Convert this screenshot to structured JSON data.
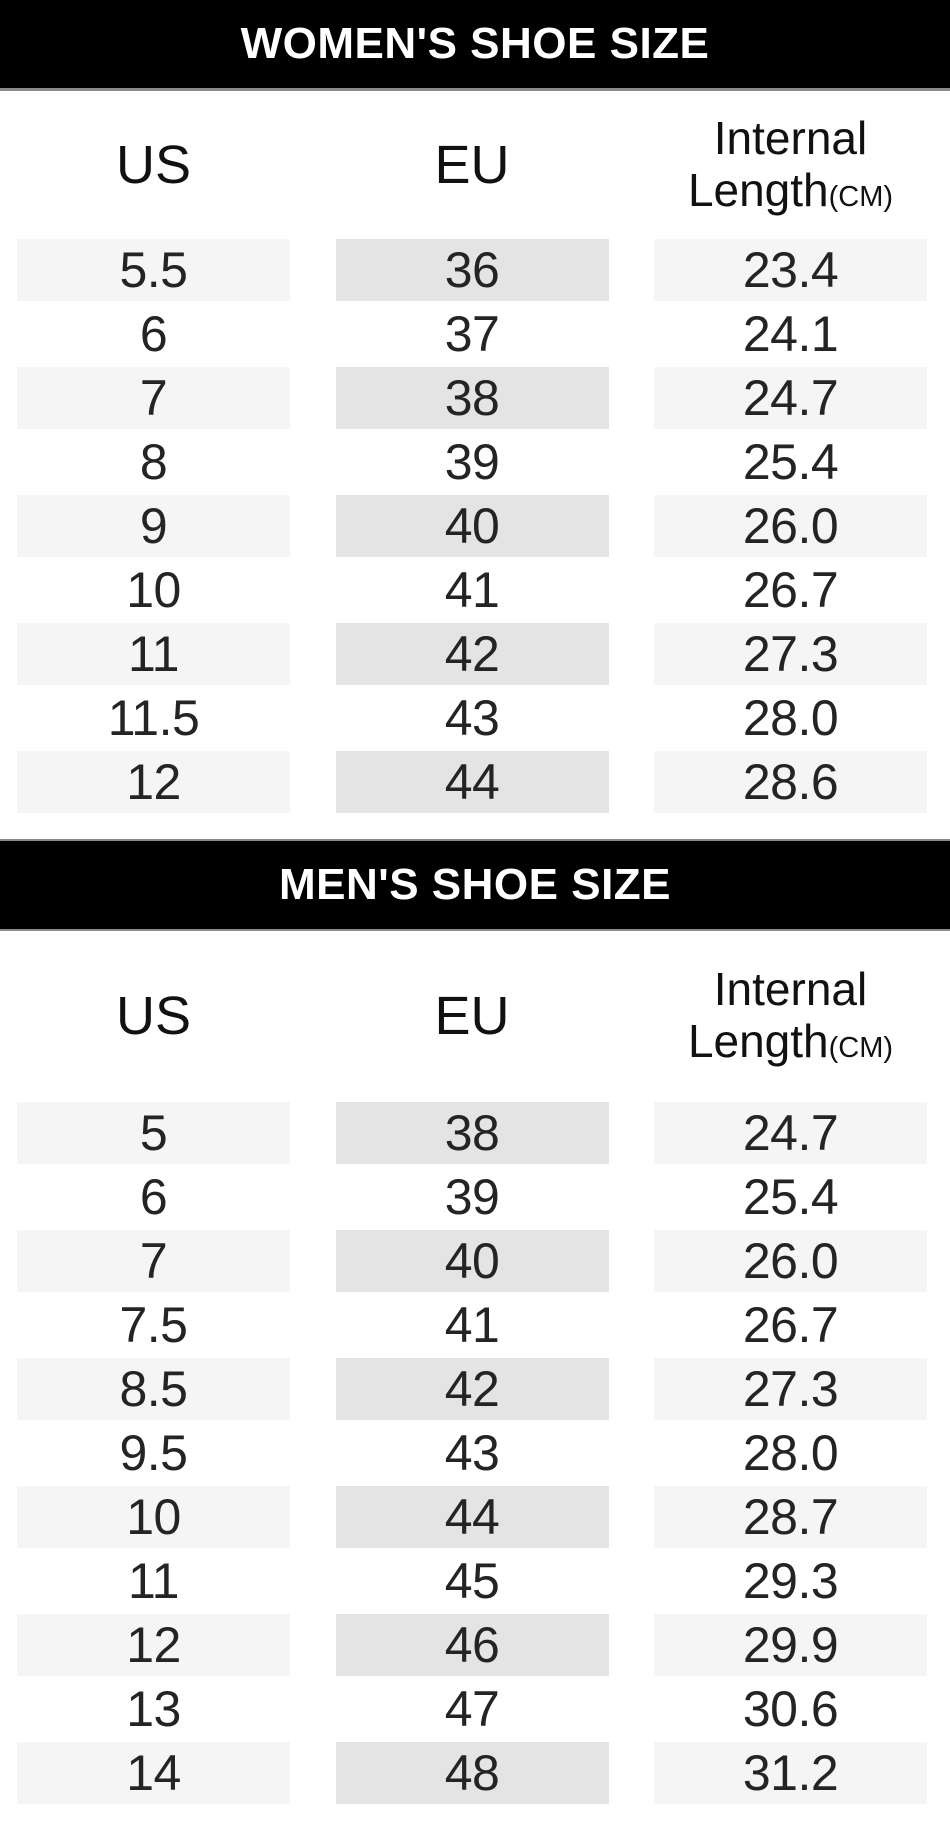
{
  "colors": {
    "banner_bg": "#000000",
    "banner_text": "#ffffff",
    "banner_border": "#8a8a8a",
    "cell_light": "#f5f5f6",
    "cell_dark": "#e4e4e5",
    "text": "#242424"
  },
  "tables": [
    {
      "id": "women",
      "banner": "WOMEN'S SHOE SIZE",
      "columns": {
        "us": "US",
        "eu": "EU",
        "internal_line1": "Internal",
        "internal_line2": "Length",
        "unit": "(CM)"
      },
      "rows": [
        [
          "5.5",
          "36",
          "23.4"
        ],
        [
          "6",
          "37",
          "24.1"
        ],
        [
          "7",
          "38",
          "24.7"
        ],
        [
          "8",
          "39",
          "25.4"
        ],
        [
          "9",
          "40",
          "26.0"
        ],
        [
          "10",
          "41",
          "26.7"
        ],
        [
          "11",
          "42",
          "27.3"
        ],
        [
          "11.5",
          "43",
          "28.0"
        ],
        [
          "12",
          "44",
          "28.6"
        ]
      ]
    },
    {
      "id": "men",
      "banner": "MEN'S SHOE SIZE",
      "columns": {
        "us": "US",
        "eu": "EU",
        "internal_line1": "Internal",
        "internal_line2": "Length",
        "unit": "(CM)"
      },
      "rows": [
        [
          "5",
          "38",
          "24.7"
        ],
        [
          "6",
          "39",
          "25.4"
        ],
        [
          "7",
          "40",
          "26.0"
        ],
        [
          "7.5",
          "41",
          "26.7"
        ],
        [
          "8.5",
          "42",
          "27.3"
        ],
        [
          "9.5",
          "43",
          "28.0"
        ],
        [
          "10",
          "44",
          "28.7"
        ],
        [
          "11",
          "45",
          "29.3"
        ],
        [
          "12",
          "46",
          "29.9"
        ],
        [
          "13",
          "47",
          "30.6"
        ],
        [
          "14",
          "48",
          "31.2"
        ]
      ]
    }
  ],
  "chart_data": [
    {
      "type": "table",
      "title": "WOMEN'S SHOE SIZE",
      "columns": [
        "US",
        "EU",
        "Internal Length(CM)"
      ],
      "rows": [
        [
          "5.5",
          "36",
          "23.4"
        ],
        [
          "6",
          "37",
          "24.1"
        ],
        [
          "7",
          "38",
          "24.7"
        ],
        [
          "8",
          "39",
          "25.4"
        ],
        [
          "9",
          "40",
          "26.0"
        ],
        [
          "10",
          "41",
          "26.7"
        ],
        [
          "11",
          "42",
          "27.3"
        ],
        [
          "11.5",
          "43",
          "28.0"
        ],
        [
          "12",
          "44",
          "28.6"
        ]
      ],
      "layout_hints": {
        "striped_rows": "odd rows shaded",
        "eu_column_shade": "darker gray than US and Internal Length columns"
      }
    },
    {
      "type": "table",
      "title": "MEN'S SHOE SIZE",
      "columns": [
        "US",
        "EU",
        "Internal Length(CM)"
      ],
      "rows": [
        [
          "5",
          "38",
          "24.7"
        ],
        [
          "6",
          "39",
          "25.4"
        ],
        [
          "7",
          "40",
          "26.0"
        ],
        [
          "7.5",
          "41",
          "26.7"
        ],
        [
          "8.5",
          "42",
          "27.3"
        ],
        [
          "9.5",
          "43",
          "28.0"
        ],
        [
          "10",
          "44",
          "28.7"
        ],
        [
          "11",
          "45",
          "29.3"
        ],
        [
          "12",
          "46",
          "29.9"
        ],
        [
          "13",
          "47",
          "30.6"
        ],
        [
          "14",
          "48",
          "31.2"
        ]
      ],
      "layout_hints": {
        "striped_rows": "odd rows shaded",
        "eu_column_shade": "darker gray than US and Internal Length columns"
      }
    }
  ]
}
